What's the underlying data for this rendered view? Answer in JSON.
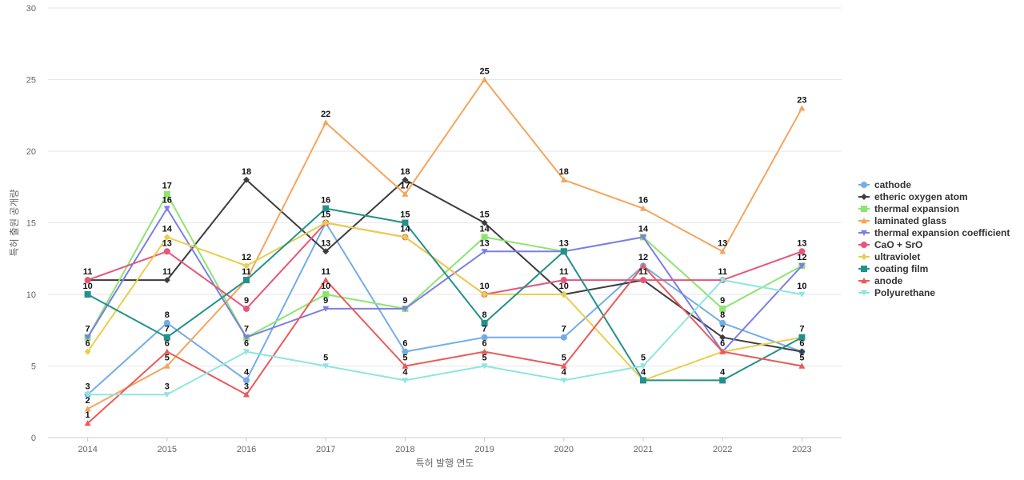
{
  "chart_data": {
    "type": "line",
    "xlabel": "특허 발행 연도",
    "ylabel": "특허 출원 공개량",
    "ylim": [
      0,
      30
    ],
    "yticks": [
      0,
      5,
      10,
      15,
      20,
      25,
      30
    ],
    "grid": true,
    "legend_position": "right",
    "x": [
      "2014",
      "2015",
      "2016",
      "2017",
      "2018",
      "2019",
      "2020",
      "2021",
      "2022",
      "2023"
    ],
    "series": [
      {
        "name": "cathode",
        "color": "#73ade8",
        "marker": "circle",
        "values": [
          3,
          8,
          4,
          15,
          6,
          7,
          7,
          12,
          8,
          6
        ]
      },
      {
        "name": "etheric oxygen atom",
        "color": "#3d3d3d",
        "marker": "diamond",
        "values": [
          11,
          11,
          18,
          13,
          18,
          15,
          10,
          11,
          7,
          6
        ]
      },
      {
        "name": "thermal expansion",
        "color": "#8de56f",
        "marker": "square",
        "values": [
          7,
          17,
          7,
          10,
          9,
          14,
          13,
          14,
          9,
          12
        ]
      },
      {
        "name": "laminated glass",
        "color": "#f4a55c",
        "marker": "triangle",
        "values": [
          2,
          5,
          11,
          22,
          17,
          25,
          18,
          16,
          13,
          23
        ]
      },
      {
        "name": "thermal expansion coefficient",
        "color": "#7e7de6",
        "marker": "triangle-down",
        "values": [
          7,
          16,
          7,
          9,
          9,
          13,
          13,
          14,
          6,
          12
        ]
      },
      {
        "name": "CaO + SrO",
        "color": "#e8557a",
        "marker": "circle",
        "values": [
          11,
          13,
          9,
          15,
          14,
          10,
          11,
          11,
          11,
          13
        ]
      },
      {
        "name": "ultraviolet",
        "color": "#e8cf4d",
        "marker": "diamond",
        "values": [
          6,
          14,
          12,
          15,
          14,
          10,
          10,
          4,
          6,
          7
        ]
      },
      {
        "name": "coating film",
        "color": "#23918b",
        "marker": "square",
        "values": [
          10,
          7,
          11,
          16,
          15,
          8,
          13,
          4,
          4,
          7
        ]
      },
      {
        "name": "anode",
        "color": "#ea5a5a",
        "marker": "triangle",
        "values": [
          1,
          6,
          3,
          11,
          5,
          6,
          5,
          12,
          6,
          5
        ]
      },
      {
        "name": "Polyurethane",
        "color": "#8fe5e0",
        "marker": "triangle-down",
        "values": [
          3,
          3,
          6,
          5,
          4,
          5,
          4,
          5,
          11,
          10
        ]
      }
    ]
  }
}
